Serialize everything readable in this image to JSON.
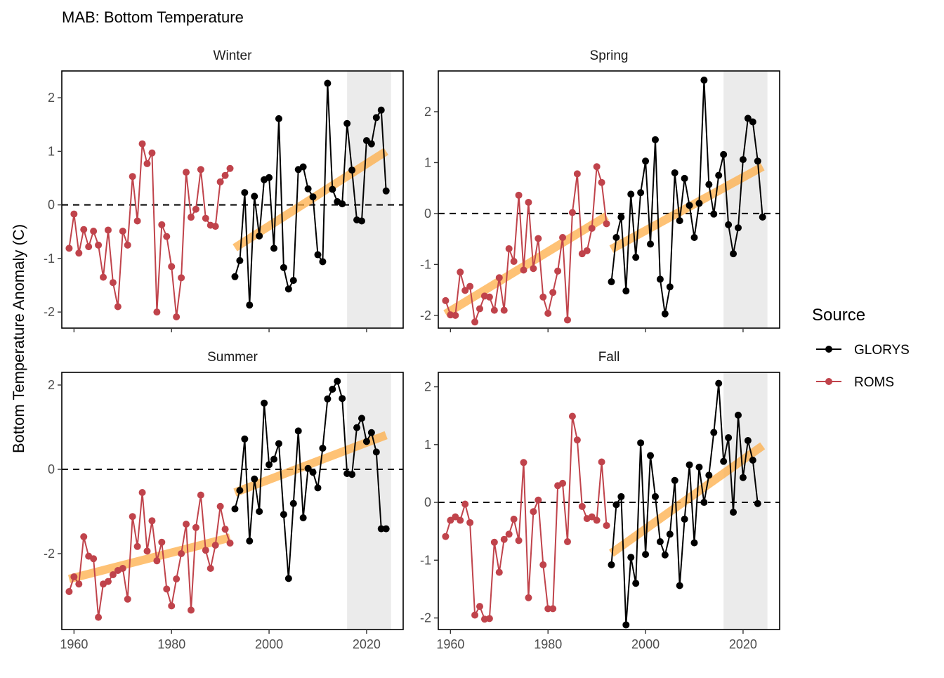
{
  "title": "MAB: Bottom Temperature",
  "ylabel": "Bottom Temperature Anomaly (C)",
  "legend": {
    "title": "Source",
    "items": [
      {
        "label": "GLORYS",
        "color": "#000000"
      },
      {
        "label": "ROMS",
        "color": "#c0434b"
      }
    ]
  },
  "colors": {
    "glorys": "#000000",
    "roms": "#c0434b",
    "trend": "#fdae47",
    "shade": "#ebebeb"
  },
  "chart_data": [
    {
      "type": "line",
      "title": "Winter",
      "xlim": [
        1957.5,
        2027.5
      ],
      "ylim": [
        -2.3,
        2.5
      ],
      "xticks": [
        1960,
        1980,
        2000,
        2020
      ],
      "yticks": [
        2,
        1,
        0,
        -1,
        -2
      ],
      "ytick_labels": [
        "2",
        "1",
        "0",
        "-1",
        "-2"
      ],
      "shade": [
        2016,
        2025
      ],
      "series": [
        {
          "name": "ROMS",
          "x": [
            1959,
            1960,
            1961,
            1962,
            1963,
            1964,
            1965,
            1966,
            1967,
            1968,
            1969,
            1970,
            1971,
            1972,
            1973,
            1974,
            1975,
            1976,
            1977,
            1978,
            1979,
            1980,
            1981,
            1982,
            1983,
            1984,
            1985,
            1986,
            1987,
            1988,
            1989,
            1990,
            1991,
            1992
          ],
          "y": [
            -0.81,
            -0.17,
            -0.9,
            -0.46,
            -0.78,
            -0.49,
            -0.75,
            -1.35,
            -0.47,
            -1.45,
            -1.9,
            -0.49,
            -0.75,
            0.53,
            -0.3,
            1.14,
            0.77,
            0.97,
            -2.0,
            -0.37,
            -0.59,
            -1.15,
            -2.09,
            -1.36,
            0.61,
            -0.23,
            -0.08,
            0.66,
            -0.25,
            -0.38,
            -0.4,
            0.43,
            0.55,
            0.68
          ]
        },
        {
          "name": "GLORYS",
          "x": [
            1993,
            1994,
            1995,
            1996,
            1997,
            1998,
            1999,
            2000,
            2001,
            2002,
            2003,
            2004,
            2005,
            2006,
            2007,
            2008,
            2009,
            2010,
            2011,
            2012,
            2013,
            2014,
            2015,
            2016,
            2017,
            2018,
            2019,
            2020,
            2021,
            2022,
            2023,
            2024
          ],
          "y": [
            -1.34,
            -1.04,
            0.23,
            -1.87,
            0.16,
            -0.58,
            0.47,
            0.51,
            -0.81,
            1.61,
            -1.17,
            -1.57,
            -1.41,
            0.66,
            0.71,
            0.3,
            0.15,
            -0.93,
            -1.06,
            2.27,
            0.29,
            0.06,
            0.02,
            1.52,
            0.65,
            -0.28,
            -0.3,
            1.2,
            1.14,
            1.63,
            1.77,
            0.26
          ]
        }
      ],
      "trend": [
        {
          "x": [
            1993,
            2024
          ],
          "y": [
            -0.8,
            1.0
          ]
        }
      ]
    },
    {
      "type": "line",
      "title": "Spring",
      "xlim": [
        1957.5,
        2027.5
      ],
      "ylim": [
        -2.25,
        2.8
      ],
      "xticks": [
        1960,
        1980,
        2000,
        2020
      ],
      "yticks": [
        2,
        1,
        0,
        -1,
        -2
      ],
      "ytick_labels": [
        "2",
        "1",
        "0",
        "-1",
        "-2"
      ],
      "shade": [
        2016,
        2025
      ],
      "series": [
        {
          "name": "ROMS",
          "x": [
            1959,
            1960,
            1961,
            1962,
            1963,
            1964,
            1965,
            1966,
            1967,
            1968,
            1969,
            1970,
            1971,
            1972,
            1973,
            1974,
            1975,
            1976,
            1977,
            1978,
            1979,
            1980,
            1981,
            1982,
            1983,
            1984,
            1985,
            1986,
            1987,
            1988,
            1989,
            1990,
            1991,
            1992
          ],
          "y": [
            -1.71,
            -1.99,
            -2.0,
            -1.15,
            -1.51,
            -1.43,
            -2.13,
            -1.87,
            -1.62,
            -1.64,
            -1.9,
            -1.26,
            -1.9,
            -0.69,
            -0.94,
            0.36,
            -1.11,
            0.22,
            -1.08,
            -0.49,
            -1.64,
            -1.96,
            -1.55,
            -1.13,
            -0.47,
            -2.09,
            0.02,
            0.78,
            -0.79,
            -0.73,
            -0.29,
            0.92,
            0.61,
            -0.2
          ]
        },
        {
          "name": "GLORYS",
          "x": [
            1993,
            1994,
            1995,
            1996,
            1997,
            1998,
            1999,
            2000,
            2001,
            2002,
            2003,
            2004,
            2005,
            2006,
            2007,
            2008,
            2009,
            2010,
            2011,
            2012,
            2013,
            2014,
            2015,
            2016,
            2017,
            2018,
            2019,
            2020,
            2021,
            2022,
            2023,
            2024
          ],
          "y": [
            -1.34,
            -0.47,
            -0.07,
            -1.52,
            0.38,
            -0.86,
            0.41,
            1.03,
            -0.6,
            1.45,
            -1.29,
            -1.97,
            -1.44,
            0.8,
            -0.14,
            0.69,
            0.16,
            -0.47,
            0.2,
            2.62,
            0.57,
            -0.01,
            0.75,
            1.16,
            -0.22,
            -0.79,
            -0.28,
            1.06,
            1.87,
            1.8,
            1.03,
            -0.07
          ]
        }
      ],
      "trend": [
        {
          "x": [
            1959,
            1992
          ],
          "y": [
            -1.97,
            -0.05
          ]
        },
        {
          "x": [
            1993,
            2024
          ],
          "y": [
            -0.7,
            0.92
          ]
        }
      ]
    },
    {
      "type": "line",
      "title": "Summer",
      "xlim": [
        1957.5,
        2027.5
      ],
      "ylim": [
        -3.8,
        2.3
      ],
      "xticks": [
        1960,
        1980,
        2000,
        2020
      ],
      "yticks": [
        2,
        0,
        -2
      ],
      "ytick_labels": [
        "2",
        "0",
        "-2"
      ],
      "shade": [
        2016,
        2025
      ],
      "series": [
        {
          "name": "ROMS",
          "x": [
            1959,
            1960,
            1961,
            1962,
            1963,
            1964,
            1965,
            1966,
            1967,
            1968,
            1969,
            1970,
            1971,
            1972,
            1973,
            1974,
            1975,
            1976,
            1977,
            1978,
            1979,
            1980,
            1981,
            1982,
            1983,
            1984,
            1985,
            1986,
            1987,
            1988,
            1989,
            1990,
            1991,
            1992
          ],
          "y": [
            -2.9,
            -2.55,
            -2.72,
            -1.6,
            -2.06,
            -2.12,
            -3.51,
            -2.72,
            -2.66,
            -2.5,
            -2.4,
            -2.35,
            -3.08,
            -1.12,
            -1.83,
            -0.55,
            -1.94,
            -1.22,
            -2.17,
            -1.73,
            -2.84,
            -3.24,
            -2.6,
            -2.0,
            -1.3,
            -3.34,
            -1.38,
            -0.61,
            -1.92,
            -2.35,
            -1.8,
            -0.88,
            -1.42,
            -1.75
          ]
        },
        {
          "name": "GLORYS",
          "x": [
            1993,
            1994,
            1995,
            1996,
            1997,
            1998,
            1999,
            2000,
            2001,
            2002,
            2003,
            2004,
            2005,
            2006,
            2007,
            2008,
            2009,
            2010,
            2011,
            2012,
            2013,
            2014,
            2015,
            2016,
            2017,
            2018,
            2019,
            2020,
            2021,
            2022,
            2023,
            2024
          ],
          "y": [
            -0.94,
            -0.5,
            0.72,
            -1.7,
            -0.23,
            -1.0,
            1.57,
            0.11,
            0.24,
            0.61,
            -1.07,
            -2.59,
            -0.81,
            0.91,
            -1.15,
            0.02,
            -0.07,
            -0.44,
            0.5,
            1.67,
            1.9,
            2.09,
            1.68,
            -0.1,
            -0.12,
            0.99,
            1.21,
            0.66,
            0.87,
            0.41,
            -1.41,
            -1.41
          ]
        }
      ],
      "trend": [
        {
          "x": [
            1959,
            1992
          ],
          "y": [
            -2.6,
            -1.62
          ]
        },
        {
          "x": [
            1993,
            2024
          ],
          "y": [
            -0.55,
            0.81
          ]
        }
      ]
    },
    {
      "type": "line",
      "title": "Fall",
      "xlim": [
        1957.5,
        2027.5
      ],
      "ylim": [
        -2.2,
        2.25
      ],
      "xticks": [
        1960,
        1980,
        2000,
        2020
      ],
      "yticks": [
        2,
        1,
        0,
        -1,
        -2
      ],
      "ytick_labels": [
        "2",
        "1",
        "0",
        "-1",
        "-2"
      ],
      "shade": [
        2016,
        2025
      ],
      "series": [
        {
          "name": "ROMS",
          "x": [
            1959,
            1960,
            1961,
            1962,
            1963,
            1964,
            1965,
            1966,
            1967,
            1968,
            1969,
            1970,
            1971,
            1972,
            1973,
            1974,
            1975,
            1976,
            1977,
            1978,
            1979,
            1980,
            1981,
            1982,
            1983,
            1984,
            1985,
            1986,
            1987,
            1988,
            1989,
            1990,
            1991,
            1992
          ],
          "y": [
            -0.59,
            -0.31,
            -0.25,
            -0.31,
            -0.03,
            -0.35,
            -1.95,
            -1.8,
            -2.02,
            -2.01,
            -0.69,
            -1.21,
            -0.64,
            -0.55,
            -0.29,
            -0.66,
            0.69,
            -1.65,
            -0.16,
            0.04,
            -1.08,
            -1.84,
            -1.84,
            0.29,
            0.33,
            -0.68,
            1.49,
            1.08,
            -0.07,
            -0.28,
            -0.25,
            -0.31,
            0.7,
            -0.4
          ]
        },
        {
          "name": "GLORYS",
          "x": [
            1993,
            1994,
            1995,
            1996,
            1997,
            1998,
            1999,
            2000,
            2001,
            2002,
            2003,
            2004,
            2005,
            2006,
            2007,
            2008,
            2009,
            2010,
            2011,
            2012,
            2013,
            2014,
            2015,
            2016,
            2017,
            2018,
            2019,
            2020,
            2021,
            2022,
            2023
          ],
          "y": [
            -1.08,
            -0.04,
            0.1,
            -2.12,
            -0.95,
            -1.4,
            1.03,
            -0.9,
            0.81,
            0.1,
            -0.68,
            -0.91,
            -0.55,
            0.38,
            -1.44,
            -0.29,
            0.65,
            -0.7,
            0.61,
            0.0,
            0.47,
            1.21,
            2.06,
            0.71,
            1.12,
            -0.17,
            1.51,
            0.43,
            1.07,
            0.73,
            -0.02
          ]
        }
      ],
      "trend": [
        {
          "x": [
            1993,
            2024
          ],
          "y": [
            -0.88,
            0.98
          ]
        }
      ]
    }
  ]
}
